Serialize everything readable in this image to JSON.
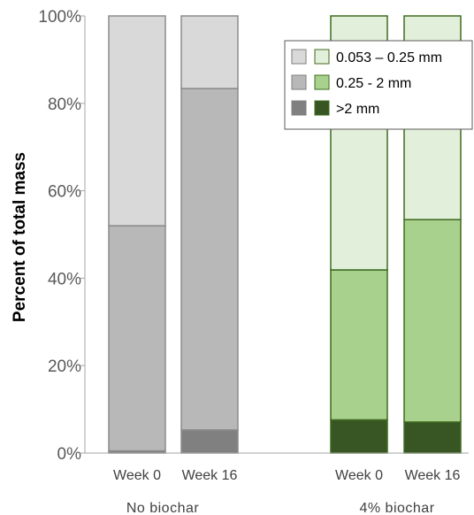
{
  "chart_data": {
    "type": "bar",
    "stacked": true,
    "ylabel": "Percent of total mass",
    "ylim": [
      0,
      100
    ],
    "yticks": [
      "0%",
      "20%",
      "40%",
      "60%",
      "80%",
      "100%"
    ],
    "groups": [
      {
        "label": "No biochar",
        "categories": [
          "Week 0",
          "Week 16"
        ],
        "palette": {
          ">2 mm": "#808080",
          "0.25 - 2 mm": "#b8b8b8",
          "0.053 – 0.25 mm": "#d9d9d9"
        },
        "series": [
          {
            "name": ">2 mm",
            "values": [
              0.5,
              5.3
            ]
          },
          {
            "name": "0.25 - 2 mm",
            "values": [
              51.5,
              78.1
            ]
          },
          {
            "name": "0.053 – 0.25 mm",
            "values": [
              48.0,
              16.6
            ]
          }
        ]
      },
      {
        "label": "4% biochar",
        "categories": [
          "Week 0",
          "Week 16"
        ],
        "palette": {
          ">2 mm": "#375623",
          "0.25 - 2 mm": "#a9d18e",
          "0.053 – 0.25 mm": "#e2efda"
        },
        "series": [
          {
            "name": ">2 mm",
            "values": [
              7.6,
              7.1
            ]
          },
          {
            "name": "0.25 - 2 mm",
            "values": [
              34.3,
              46.3
            ]
          },
          {
            "name": "0.053 – 0.25 mm",
            "values": [
              58.1,
              46.6
            ]
          }
        ]
      }
    ],
    "legend": {
      "placement": "top-right",
      "entries": [
        {
          "name": "0.053 – 0.25 mm",
          "swatches": [
            "#d9d9d9",
            "#e2efda"
          ]
        },
        {
          "name": "0.25 - 2 mm",
          "swatches": [
            "#b8b8b8",
            "#a9d18e"
          ]
        },
        {
          "name": ">2 mm",
          "swatches": [
            "#808080",
            "#375623"
          ]
        }
      ]
    },
    "colors": {
      "no_biochar_edge": "#8c8c8c",
      "biochar_edge": "#3f6b1f",
      "axis": "#a6a6a6"
    }
  }
}
